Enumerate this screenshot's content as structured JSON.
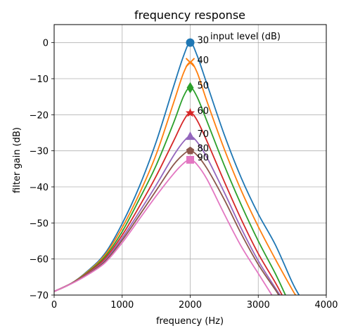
{
  "chart_data": {
    "type": "line",
    "title": "frequency response",
    "xlabel": "frequency (Hz)",
    "ylabel": "filter gain (dB)",
    "xlim": [
      0,
      4000
    ],
    "ylim": [
      -70,
      5
    ],
    "x_ticks": [
      0,
      1000,
      2000,
      3000,
      4000
    ],
    "x_tick_labels": [
      "0",
      "1000",
      "2000",
      "3000",
      "4000"
    ],
    "y_ticks": [
      0,
      -10,
      -20,
      -30,
      -40,
      -50,
      -60,
      -70
    ],
    "y_tick_labels": [
      "0",
      "−10",
      "−20",
      "−30",
      "−40",
      "−50",
      "−60",
      "−70"
    ],
    "grid": true,
    "annotation": "input level (dB)",
    "series": [
      {
        "name": "30",
        "color": "#1f77b4",
        "marker": "circle",
        "peak": [
          2000,
          0
        ],
        "points": [
          [
            0,
            -69
          ],
          [
            250,
            -66.8
          ],
          [
            500,
            -63.2
          ],
          [
            750,
            -58.4
          ],
          [
            1000,
            -50.2
          ],
          [
            1250,
            -40
          ],
          [
            1500,
            -27.5
          ],
          [
            1750,
            -12.5
          ],
          [
            1900,
            -3.8
          ],
          [
            2000,
            0
          ],
          [
            2100,
            -3.5
          ],
          [
            2250,
            -11.7
          ],
          [
            2500,
            -25.5
          ],
          [
            2750,
            -37.5
          ],
          [
            3000,
            -47.5
          ],
          [
            3250,
            -56
          ],
          [
            3500,
            -66.5
          ],
          [
            3600,
            -70
          ]
        ]
      },
      {
        "name": "40",
        "color": "#ff7f0e",
        "marker": "x",
        "peak": [
          2000,
          -5.5
        ],
        "points": [
          [
            0,
            -69
          ],
          [
            250,
            -66.8
          ],
          [
            500,
            -63.4
          ],
          [
            750,
            -58.8
          ],
          [
            1000,
            -51.3
          ],
          [
            1250,
            -42
          ],
          [
            1500,
            -31
          ],
          [
            1750,
            -17
          ],
          [
            1900,
            -8.5
          ],
          [
            2000,
            -5.5
          ],
          [
            2100,
            -8.2
          ],
          [
            2250,
            -16.5
          ],
          [
            2500,
            -29.5
          ],
          [
            2750,
            -41
          ],
          [
            3000,
            -51
          ],
          [
            3250,
            -60
          ],
          [
            3500,
            -68.5
          ],
          [
            3550,
            -70
          ]
        ]
      },
      {
        "name": "50",
        "color": "#2ca02c",
        "marker": "diamond",
        "peak": [
          2000,
          -12.5
        ],
        "points": [
          [
            0,
            -69
          ],
          [
            250,
            -66.8
          ],
          [
            500,
            -63.6
          ],
          [
            750,
            -59.3
          ],
          [
            1000,
            -52.4
          ],
          [
            1250,
            -43.5
          ],
          [
            1500,
            -34
          ],
          [
            1750,
            -22.5
          ],
          [
            1900,
            -15
          ],
          [
            2000,
            -12.5
          ],
          [
            2100,
            -15
          ],
          [
            2250,
            -22
          ],
          [
            2500,
            -34
          ],
          [
            2750,
            -45
          ],
          [
            3000,
            -55
          ],
          [
            3250,
            -64
          ],
          [
            3400,
            -70
          ]
        ]
      },
      {
        "name": "60",
        "color": "#d62728",
        "marker": "star",
        "peak": [
          2000,
          -19.5
        ],
        "points": [
          [
            0,
            -69
          ],
          [
            250,
            -66.8
          ],
          [
            500,
            -63.8
          ],
          [
            750,
            -59.8
          ],
          [
            1000,
            -53.4
          ],
          [
            1250,
            -45.5
          ],
          [
            1500,
            -37
          ],
          [
            1750,
            -27.5
          ],
          [
            1900,
            -21.7
          ],
          [
            2000,
            -19.5
          ],
          [
            2100,
            -21.5
          ],
          [
            2250,
            -27.5
          ],
          [
            2500,
            -38.5
          ],
          [
            2750,
            -49
          ],
          [
            3000,
            -58.5
          ],
          [
            3250,
            -66.5
          ],
          [
            3350,
            -70
          ]
        ]
      },
      {
        "name": "70",
        "color": "#9467bd",
        "marker": "triangle",
        "peak": [
          2000,
          -26
        ],
        "points": [
          [
            0,
            -69
          ],
          [
            250,
            -66.8
          ],
          [
            500,
            -64
          ],
          [
            750,
            -60.3
          ],
          [
            1000,
            -54.2
          ],
          [
            1250,
            -47
          ],
          [
            1500,
            -39.5
          ],
          [
            1750,
            -31.5
          ],
          [
            1900,
            -27.5
          ],
          [
            2000,
            -26
          ],
          [
            2100,
            -27.5
          ],
          [
            2250,
            -32
          ],
          [
            2500,
            -41.5
          ],
          [
            2750,
            -51.5
          ],
          [
            3000,
            -60.5
          ],
          [
            3250,
            -68
          ],
          [
            3320,
            -70
          ]
        ]
      },
      {
        "name": "80",
        "color": "#8c564b",
        "marker": "pentagon",
        "peak": [
          2000,
          -30
        ],
        "points": [
          [
            0,
            -69
          ],
          [
            250,
            -66.8
          ],
          [
            500,
            -64.1
          ],
          [
            750,
            -60.6
          ],
          [
            1000,
            -54.8
          ],
          [
            1250,
            -48
          ],
          [
            1500,
            -41
          ],
          [
            1750,
            -34
          ],
          [
            1900,
            -31
          ],
          [
            2000,
            -30
          ],
          [
            2100,
            -31.2
          ],
          [
            2250,
            -35
          ],
          [
            2500,
            -43.5
          ],
          [
            2750,
            -53
          ],
          [
            3000,
            -61.5
          ],
          [
            3250,
            -68.5
          ],
          [
            3300,
            -70
          ]
        ]
      },
      {
        "name": "90",
        "color": "#e377c2",
        "marker": "square",
        "peak": [
          2000,
          -32.5
        ],
        "points": [
          [
            0,
            -69
          ],
          [
            250,
            -66.9
          ],
          [
            500,
            -64.3
          ],
          [
            750,
            -61
          ],
          [
            1000,
            -55.5
          ],
          [
            1250,
            -49
          ],
          [
            1500,
            -42.5
          ],
          [
            1750,
            -36.5
          ],
          [
            1900,
            -33.5
          ],
          [
            2000,
            -32.5
          ],
          [
            2100,
            -33.8
          ],
          [
            2250,
            -38
          ],
          [
            2500,
            -47.5
          ],
          [
            2750,
            -56.5
          ],
          [
            3000,
            -64
          ],
          [
            3200,
            -70
          ]
        ]
      }
    ]
  }
}
